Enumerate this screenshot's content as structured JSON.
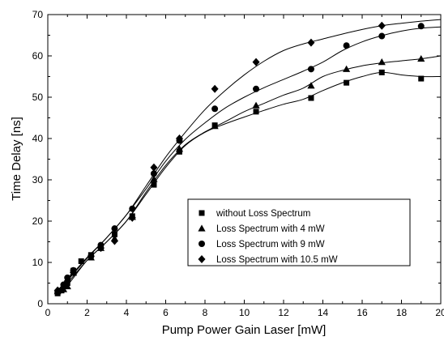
{
  "chart_data": {
    "type": "scatter",
    "xlabel": "Pump Power Gain Laser [mW]",
    "ylabel": "Time Delay [ns]",
    "xlim": [
      0,
      20
    ],
    "ylim": [
      0,
      70
    ],
    "xticks": [
      0,
      2,
      4,
      6,
      8,
      10,
      12,
      14,
      16,
      18,
      20
    ],
    "yticks": [
      0,
      10,
      20,
      30,
      40,
      50,
      60,
      70
    ],
    "grid": false,
    "legend_position": "center-right",
    "series": [
      {
        "name": "without Loss Spectrum",
        "marker": "square",
        "x": [
          0.5,
          0.7,
          1.0,
          1.3,
          1.7,
          2.2,
          2.7,
          3.4,
          4.3,
          5.4,
          6.7,
          8.5,
          10.6,
          13.4,
          15.2,
          17.0,
          19.0
        ],
        "y": [
          2.5,
          3.2,
          5.0,
          8.0,
          10.3,
          11.8,
          13.5,
          16.8,
          21.2,
          28.8,
          36.8,
          43.2,
          46.5,
          49.8,
          53.5,
          56.0,
          54.5
        ],
        "curve_x": [
          0.5,
          1,
          2,
          3,
          4,
          5,
          6,
          7,
          8,
          9,
          10,
          11,
          12,
          13,
          14,
          15,
          16,
          17,
          18,
          19,
          20
        ],
        "curve_y": [
          2.5,
          5,
          10.5,
          15,
          20,
          26.5,
          33,
          38.3,
          41.5,
          43.5,
          45.2,
          46.8,
          48.3,
          49.5,
          51.6,
          53.5,
          55,
          56,
          55.4,
          55,
          55
        ]
      },
      {
        "name": "Loss Spectrum with 4 mW",
        "marker": "triangle",
        "x": [
          0.5,
          0.8,
          1.0,
          1.3,
          2.2,
          2.7,
          3.4,
          4.3,
          5.4,
          6.7,
          8.5,
          10.6,
          13.4,
          15.2,
          17.0,
          19.0
        ],
        "y": [
          3.0,
          3.5,
          4.2,
          7.5,
          11.2,
          13.5,
          15.8,
          21.0,
          30.2,
          37.5,
          43.0,
          48.0,
          52.8,
          56.8,
          58.5,
          59.3
        ],
        "curve_x": [
          0.5,
          1,
          2,
          3,
          4,
          5,
          6,
          7,
          8,
          9,
          10,
          11,
          12,
          13,
          14,
          15,
          16,
          17,
          18,
          19,
          20
        ],
        "curve_y": [
          3,
          4.5,
          10.5,
          15,
          20,
          27,
          33.5,
          38.5,
          41.6,
          44,
          46.5,
          48.5,
          50.5,
          52.2,
          55,
          56.5,
          57.6,
          58.3,
          58.8,
          59.3,
          60
        ]
      },
      {
        "name": "Loss Spectrum with 9 mW",
        "marker": "circle",
        "x": [
          0.5,
          0.8,
          1.0,
          1.3,
          2.2,
          2.7,
          3.4,
          4.3,
          5.4,
          6.7,
          8.5,
          10.6,
          13.4,
          15.2,
          17.0,
          19.0
        ],
        "y": [
          2.8,
          4.6,
          6.3,
          8.1,
          11.5,
          14.2,
          18.2,
          23.0,
          31.5,
          39.5,
          47.2,
          52.0,
          56.8,
          62.5,
          64.8,
          67.2
        ],
        "curve_x": [
          0.5,
          1,
          2,
          3,
          4,
          5,
          6,
          7,
          8,
          9,
          10,
          11,
          12,
          13,
          14,
          15,
          16,
          17,
          18,
          19,
          20
        ],
        "curve_y": [
          2.8,
          5.8,
          11.2,
          16,
          21.5,
          27.8,
          34.5,
          39.8,
          43.8,
          47.3,
          50,
          52.3,
          54.3,
          56.3,
          58.5,
          61.3,
          63.4,
          64.9,
          66,
          66.7,
          67
        ]
      },
      {
        "name": "Loss Spectrum with 10.5 mW",
        "marker": "diamond",
        "x": [
          0.5,
          0.8,
          1.0,
          1.3,
          2.2,
          2.7,
          3.4,
          4.3,
          5.4,
          6.7,
          8.5,
          10.6,
          13.4,
          17.0
        ],
        "y": [
          3.2,
          4.0,
          5.5,
          7.6,
          11.5,
          13.5,
          15.2,
          20.8,
          33.0,
          40.0,
          52.0,
          58.5,
          63.2,
          67.3
        ],
        "curve_x": [
          0.5,
          1,
          2,
          3,
          4,
          5,
          6,
          7,
          8,
          9,
          10,
          11,
          12,
          13,
          14,
          15,
          16,
          17,
          18,
          19,
          20
        ],
        "curve_y": [
          3.2,
          5.6,
          11,
          16,
          21.5,
          28.5,
          35.5,
          41.5,
          47,
          51.5,
          55.4,
          58.7,
          61.3,
          62.9,
          64.1,
          65.3,
          66.4,
          67.3,
          67.9,
          68.4,
          68.8
        ]
      }
    ]
  }
}
